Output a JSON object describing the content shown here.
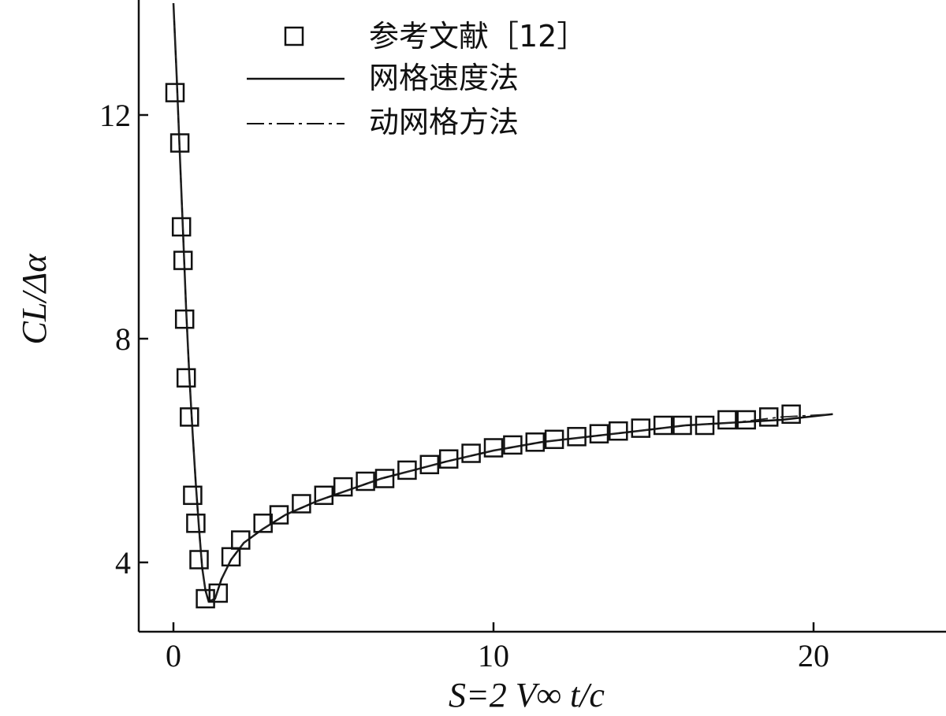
{
  "chart_data": {
    "type": "line",
    "xlabel": "S=2 V∞ t/c",
    "ylabel": "CL/Δα",
    "xlim": [
      -1.1,
      23.9
    ],
    "ylim": [
      2.8,
      14.0
    ],
    "x_ticks": [
      0,
      10,
      20
    ],
    "y_ticks": [
      4,
      8,
      12
    ],
    "grid": false,
    "legend_position": "top-center",
    "series": [
      {
        "name": "参考文献［12］",
        "style": "open-square-markers",
        "points": [
          [
            0.05,
            12.4
          ],
          [
            0.2,
            11.5
          ],
          [
            0.25,
            10.0
          ],
          [
            0.3,
            9.4
          ],
          [
            0.35,
            8.35
          ],
          [
            0.4,
            7.3
          ],
          [
            0.5,
            6.6
          ],
          [
            0.6,
            5.2
          ],
          [
            0.7,
            4.7
          ],
          [
            0.8,
            4.05
          ],
          [
            1.0,
            3.35
          ],
          [
            1.4,
            3.45
          ],
          [
            1.8,
            4.1
          ],
          [
            2.1,
            4.4
          ],
          [
            2.8,
            4.7
          ],
          [
            3.3,
            4.85
          ],
          [
            4.0,
            5.05
          ],
          [
            4.7,
            5.2
          ],
          [
            5.3,
            5.35
          ],
          [
            6.0,
            5.45
          ],
          [
            6.6,
            5.5
          ],
          [
            7.3,
            5.65
          ],
          [
            8.0,
            5.75
          ],
          [
            8.6,
            5.85
          ],
          [
            9.3,
            5.95
          ],
          [
            10.0,
            6.05
          ],
          [
            10.6,
            6.1
          ],
          [
            11.3,
            6.15
          ],
          [
            11.9,
            6.2
          ],
          [
            12.6,
            6.25
          ],
          [
            13.3,
            6.3
          ],
          [
            13.9,
            6.35
          ],
          [
            14.6,
            6.4
          ],
          [
            15.3,
            6.45
          ],
          [
            15.9,
            6.45
          ],
          [
            16.6,
            6.45
          ],
          [
            17.3,
            6.55
          ],
          [
            17.9,
            6.55
          ],
          [
            18.6,
            6.6
          ],
          [
            19.3,
            6.65
          ]
        ]
      },
      {
        "name": "网格速度法",
        "style": "solid",
        "points": [
          [
            0.0,
            14.0
          ],
          [
            0.1,
            12.7
          ],
          [
            0.2,
            11.3
          ],
          [
            0.3,
            9.9
          ],
          [
            0.4,
            8.5
          ],
          [
            0.5,
            7.3
          ],
          [
            0.6,
            6.3
          ],
          [
            0.7,
            5.4
          ],
          [
            0.8,
            4.6
          ],
          [
            0.9,
            3.9
          ],
          [
            1.0,
            3.5
          ],
          [
            1.1,
            3.3
          ],
          [
            1.3,
            3.35
          ],
          [
            1.5,
            3.7
          ],
          [
            1.8,
            4.05
          ],
          [
            2.2,
            4.35
          ],
          [
            2.8,
            4.6
          ],
          [
            3.5,
            4.85
          ],
          [
            4.5,
            5.1
          ],
          [
            5.5,
            5.3
          ],
          [
            6.5,
            5.5
          ],
          [
            7.5,
            5.65
          ],
          [
            8.5,
            5.8
          ],
          [
            10.0,
            6.0
          ],
          [
            11.5,
            6.15
          ],
          [
            13.0,
            6.25
          ],
          [
            14.5,
            6.35
          ],
          [
            16.0,
            6.45
          ],
          [
            17.5,
            6.5
          ],
          [
            19.0,
            6.55
          ],
          [
            20.6,
            6.65
          ]
        ]
      },
      {
        "name": "动网格方法",
        "style": "dash-dot",
        "points": [
          [
            0.0,
            14.0
          ],
          [
            0.1,
            12.7
          ],
          [
            0.2,
            11.3
          ],
          [
            0.3,
            9.9
          ],
          [
            0.4,
            8.5
          ],
          [
            0.5,
            7.3
          ],
          [
            0.6,
            6.3
          ],
          [
            0.7,
            5.4
          ],
          [
            0.8,
            4.6
          ],
          [
            0.9,
            3.9
          ],
          [
            1.0,
            3.5
          ],
          [
            1.1,
            3.3
          ],
          [
            1.3,
            3.35
          ],
          [
            1.5,
            3.7
          ],
          [
            1.8,
            4.05
          ],
          [
            2.2,
            4.35
          ],
          [
            2.8,
            4.6
          ],
          [
            3.5,
            4.85
          ],
          [
            4.5,
            5.1
          ],
          [
            5.5,
            5.3
          ],
          [
            6.5,
            5.5
          ],
          [
            7.5,
            5.65
          ],
          [
            8.5,
            5.8
          ],
          [
            10.0,
            6.0
          ],
          [
            11.5,
            6.15
          ],
          [
            13.0,
            6.25
          ],
          [
            14.5,
            6.35
          ],
          [
            16.0,
            6.45
          ],
          [
            17.5,
            6.5
          ],
          [
            19.0,
            6.6
          ],
          [
            20.6,
            6.65
          ]
        ]
      }
    ]
  }
}
